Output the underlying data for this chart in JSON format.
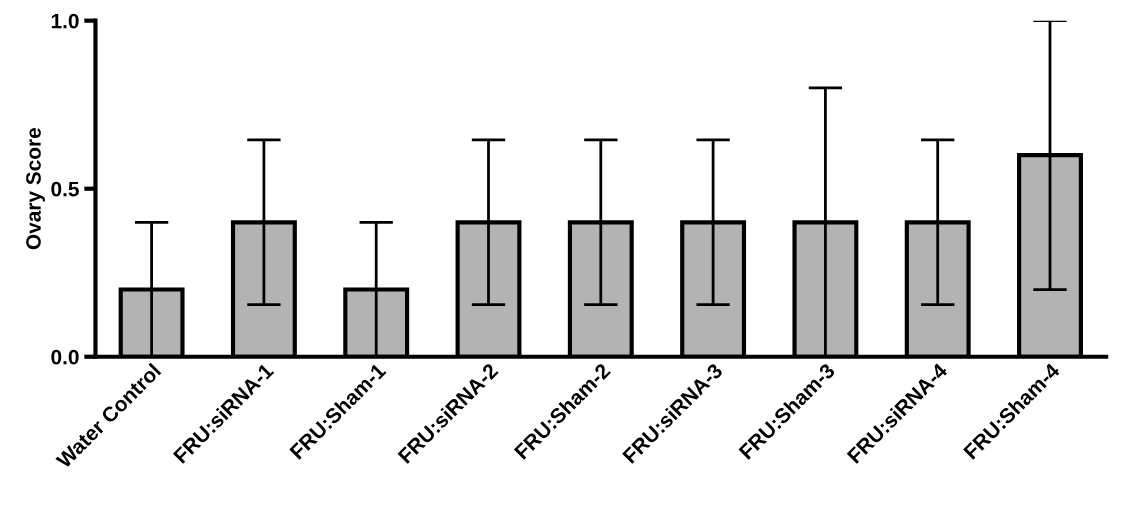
{
  "chart_data": {
    "type": "bar",
    "ylabel": "Ovary Score",
    "categories": [
      "Water Control",
      "FRU:siRNA-1",
      "FRU:Sham-1",
      "FRU:siRNA-2",
      "FRU:Sham-2",
      "FRU:siRNA-3",
      "FRU:Sham-3",
      "FRU:siRNA-4",
      "FRU:Sham-4"
    ],
    "values": [
      0.2,
      0.4,
      0.2,
      0.4,
      0.4,
      0.4,
      0.4,
      0.4,
      0.6
    ],
    "errors": [
      0.2,
      0.245,
      0.2,
      0.245,
      0.245,
      0.245,
      0.4,
      0.245,
      0.4
    ],
    "color": "#b3b3b3",
    "ylim": [
      0,
      1.0
    ],
    "yticks": [
      {
        "value": 0,
        "label": "0.0"
      },
      {
        "value": 0.5,
        "label": "0.5"
      },
      {
        "value": 1.0,
        "label": "1.0"
      }
    ],
    "grid": false,
    "legend": false
  }
}
